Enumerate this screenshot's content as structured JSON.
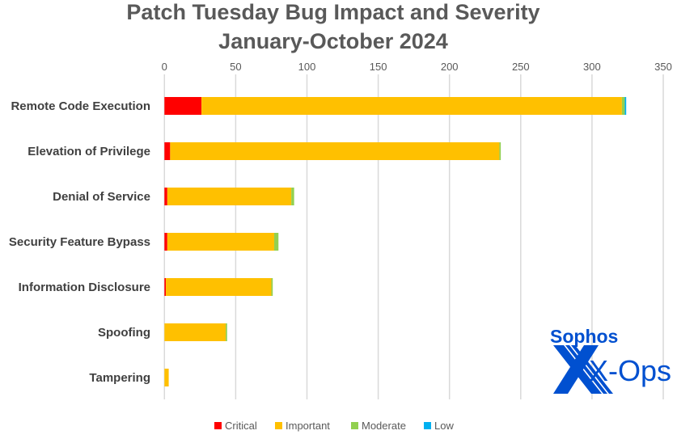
{
  "chart_data": {
    "type": "bar",
    "orientation": "horizontal",
    "stacked": true,
    "title": "Patch Tuesday Bug Impact and Severity",
    "subtitle": "January-October 2024",
    "xlim": [
      0,
      350
    ],
    "xticks": [
      0,
      50,
      100,
      150,
      200,
      250,
      300,
      350
    ],
    "grid": true,
    "axis_position": "top",
    "legend_position": "bottom",
    "categories": [
      "Remote Code Execution",
      "Elevation of Privilege",
      "Denial of Service",
      "Security Feature Bypass",
      "Information Disclosure",
      "Spoofing",
      "Tampering"
    ],
    "series": [
      {
        "name": "Critical",
        "color": "#FF0000",
        "values": [
          26,
          4,
          2,
          2,
          1,
          0,
          0
        ]
      },
      {
        "name": "Important",
        "color": "#FFC000",
        "values": [
          295,
          231,
          87,
          75,
          74,
          43,
          3
        ]
      },
      {
        "name": "Moderate",
        "color": "#92D050",
        "values": [
          2,
          1,
          2,
          3,
          1,
          1,
          0
        ]
      },
      {
        "name": "Low",
        "color": "#00B0F0",
        "values": [
          1,
          0,
          0,
          0,
          0,
          0,
          0
        ]
      }
    ]
  },
  "logo": {
    "brand": "Sophos",
    "product": "X-Ops",
    "color": "#0050D0"
  }
}
